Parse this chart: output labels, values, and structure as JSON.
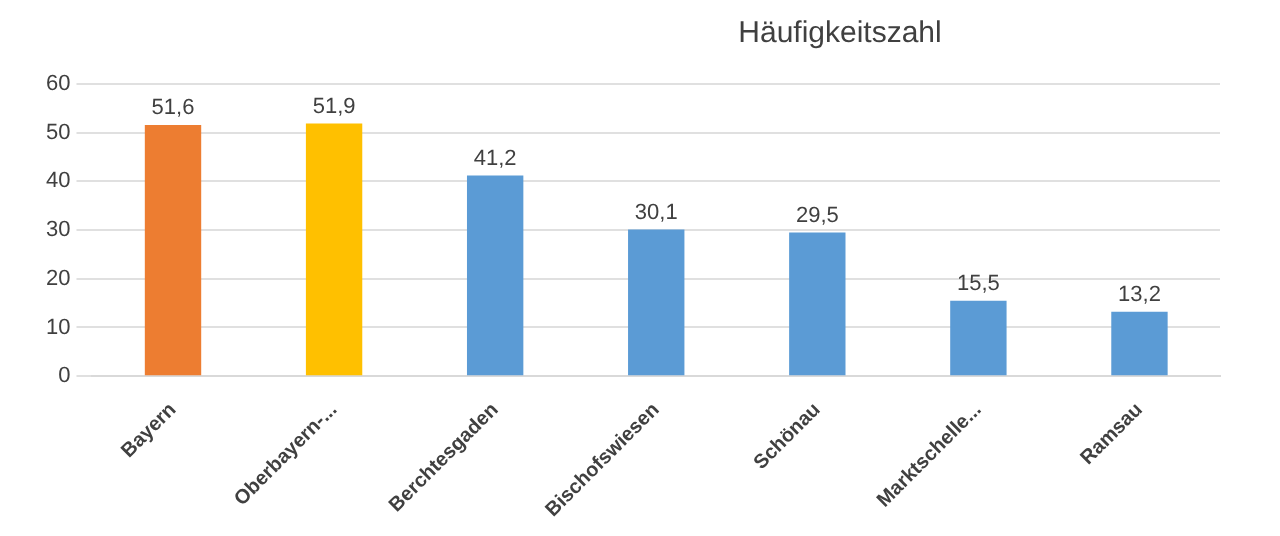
{
  "chart_data": {
    "type": "bar",
    "title": "Häufigkeitszahl",
    "categories": [
      "Bayern",
      "Oberbayern-...",
      "Berchtesgaden",
      "Bischofswiesen",
      "Schönau",
      "Marktschelle...",
      "Ramsau"
    ],
    "values": [
      51.6,
      51.9,
      41.2,
      30.1,
      29.5,
      15.5,
      13.2
    ],
    "colors": [
      "#ed7d31",
      "#ffc000",
      "#5b9bd5",
      "#5b9bd5",
      "#5b9bd5",
      "#5b9bd5",
      "#5b9bd5"
    ],
    "value_labels": [
      "51,6",
      "51,9",
      "41,2",
      "30,1",
      "29,5",
      "15,5",
      "13,2"
    ],
    "ylim": [
      0,
      60
    ],
    "yticks": [
      0,
      10,
      20,
      30,
      40,
      50,
      60
    ],
    "grid": "y",
    "legend": false
  }
}
